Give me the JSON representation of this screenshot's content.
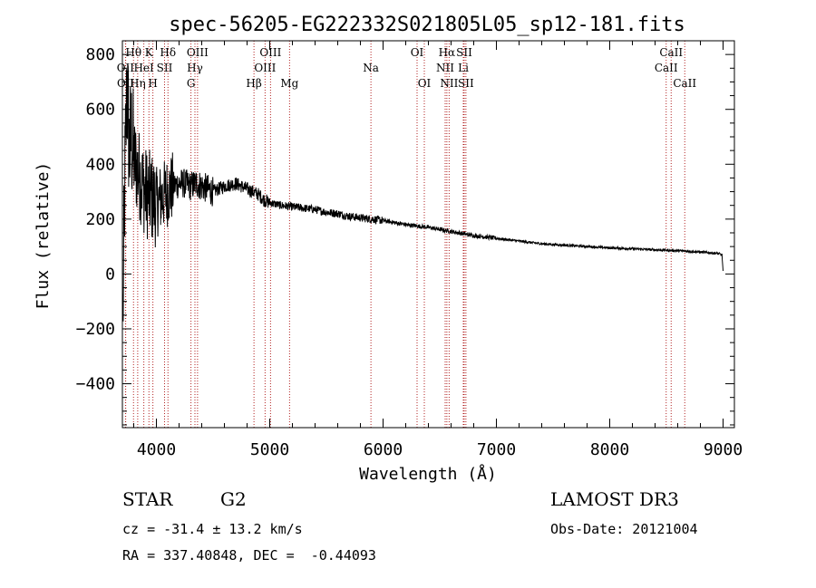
{
  "chart_data": {
    "type": "line",
    "title": "spec-56205-EG222332S021805L05_sp12-181.fits",
    "xlabel": "Wavelength (Å)",
    "ylabel": "Flux (relative)",
    "xlim": [
      3700,
      9100
    ],
    "ylim": [
      -560,
      850
    ],
    "xticks": [
      4000,
      5000,
      6000,
      7000,
      8000,
      9000
    ],
    "yticks": [
      -400,
      -200,
      0,
      200,
      400,
      600,
      800
    ],
    "spectrum_envelope": {
      "wavelength": [
        3705,
        3720,
        3740,
        3760,
        3780,
        3800,
        3830,
        3860,
        3900,
        3950,
        4000,
        4050,
        4100,
        4150,
        4200,
        4250,
        4300,
        4350,
        4400,
        4450,
        4500,
        4600,
        4700,
        4800,
        4850,
        4900,
        4950,
        5000,
        5100,
        5200,
        5300,
        5400,
        5500,
        5600,
        5700,
        5800,
        5900,
        6000,
        6200,
        6400,
        6600,
        6800,
        7000,
        7200,
        7400,
        7600,
        7800,
        8000,
        8200,
        8400,
        8600,
        8800,
        8950,
        8990,
        9000
      ],
      "flux": [
        -150,
        300,
        700,
        450,
        500,
        420,
        380,
        350,
        300,
        280,
        260,
        280,
        300,
        320,
        330,
        330,
        320,
        330,
        320,
        310,
        300,
        320,
        330,
        310,
        300,
        290,
        270,
        260,
        250,
        245,
        240,
        235,
        225,
        220,
        210,
        205,
        200,
        195,
        180,
        170,
        155,
        140,
        130,
        120,
        110,
        105,
        100,
        95,
        92,
        88,
        85,
        80,
        75,
        70,
        10
      ]
    },
    "spectral_lines": [
      {
        "label": "Hθ",
        "wavelength": 3798,
        "row": 1
      },
      {
        "label": "OII",
        "wavelength": 3727,
        "row": 2
      },
      {
        "label": "OII",
        "wavelength": 3729,
        "row": 3
      },
      {
        "label": "Hη",
        "wavelength": 3835,
        "row": 3
      },
      {
        "label": "HeI",
        "wavelength": 3889,
        "row": 2
      },
      {
        "label": "K",
        "wavelength": 3934,
        "row": 1
      },
      {
        "label": "H",
        "wavelength": 3969,
        "row": 3
      },
      {
        "label": "SII",
        "wavelength": 4072,
        "row": 2
      },
      {
        "label": "Hδ",
        "wavelength": 4102,
        "row": 1
      },
      {
        "label": "OIII",
        "wavelength": 4363,
        "row": 1
      },
      {
        "label": "Hγ",
        "wavelength": 4340,
        "row": 2
      },
      {
        "label": "G",
        "wavelength": 4305,
        "row": 3
      },
      {
        "label": "Hβ",
        "wavelength": 4861,
        "row": 3
      },
      {
        "label": "OIII",
        "wavelength": 5007,
        "row": 1
      },
      {
        "label": "OIII",
        "wavelength": 4959,
        "row": 2
      },
      {
        "label": "Mg",
        "wavelength": 5175,
        "row": 3
      },
      {
        "label": "Na",
        "wavelength": 5893,
        "row": 2
      },
      {
        "label": "OI",
        "wavelength": 6300,
        "row": 1
      },
      {
        "label": "OI",
        "wavelength": 6364,
        "row": 3
      },
      {
        "label": "Hα",
        "wavelength": 6563,
        "row": 1
      },
      {
        "label": "NII",
        "wavelength": 6548,
        "row": 2
      },
      {
        "label": "NII",
        "wavelength": 6583,
        "row": 3
      },
      {
        "label": "SII",
        "wavelength": 6716,
        "row": 1
      },
      {
        "label": "Li",
        "wavelength": 6708,
        "row": 2
      },
      {
        "label": "SII",
        "wavelength": 6731,
        "row": 3
      },
      {
        "label": "CaII",
        "wavelength": 8542,
        "row": 1
      },
      {
        "label": "CaII",
        "wavelength": 8498,
        "row": 2
      },
      {
        "label": "CaII",
        "wavelength": 8662,
        "row": 3
      }
    ]
  },
  "info": {
    "class": "STAR",
    "subclass": "G2",
    "survey": "LAMOST DR3",
    "cz": "cz = -31.4 ± 13.2 km/s",
    "obs_date": "Obs-Date: 20121004",
    "radec": "RA = 337.40848, DEC =  -0.44093"
  }
}
